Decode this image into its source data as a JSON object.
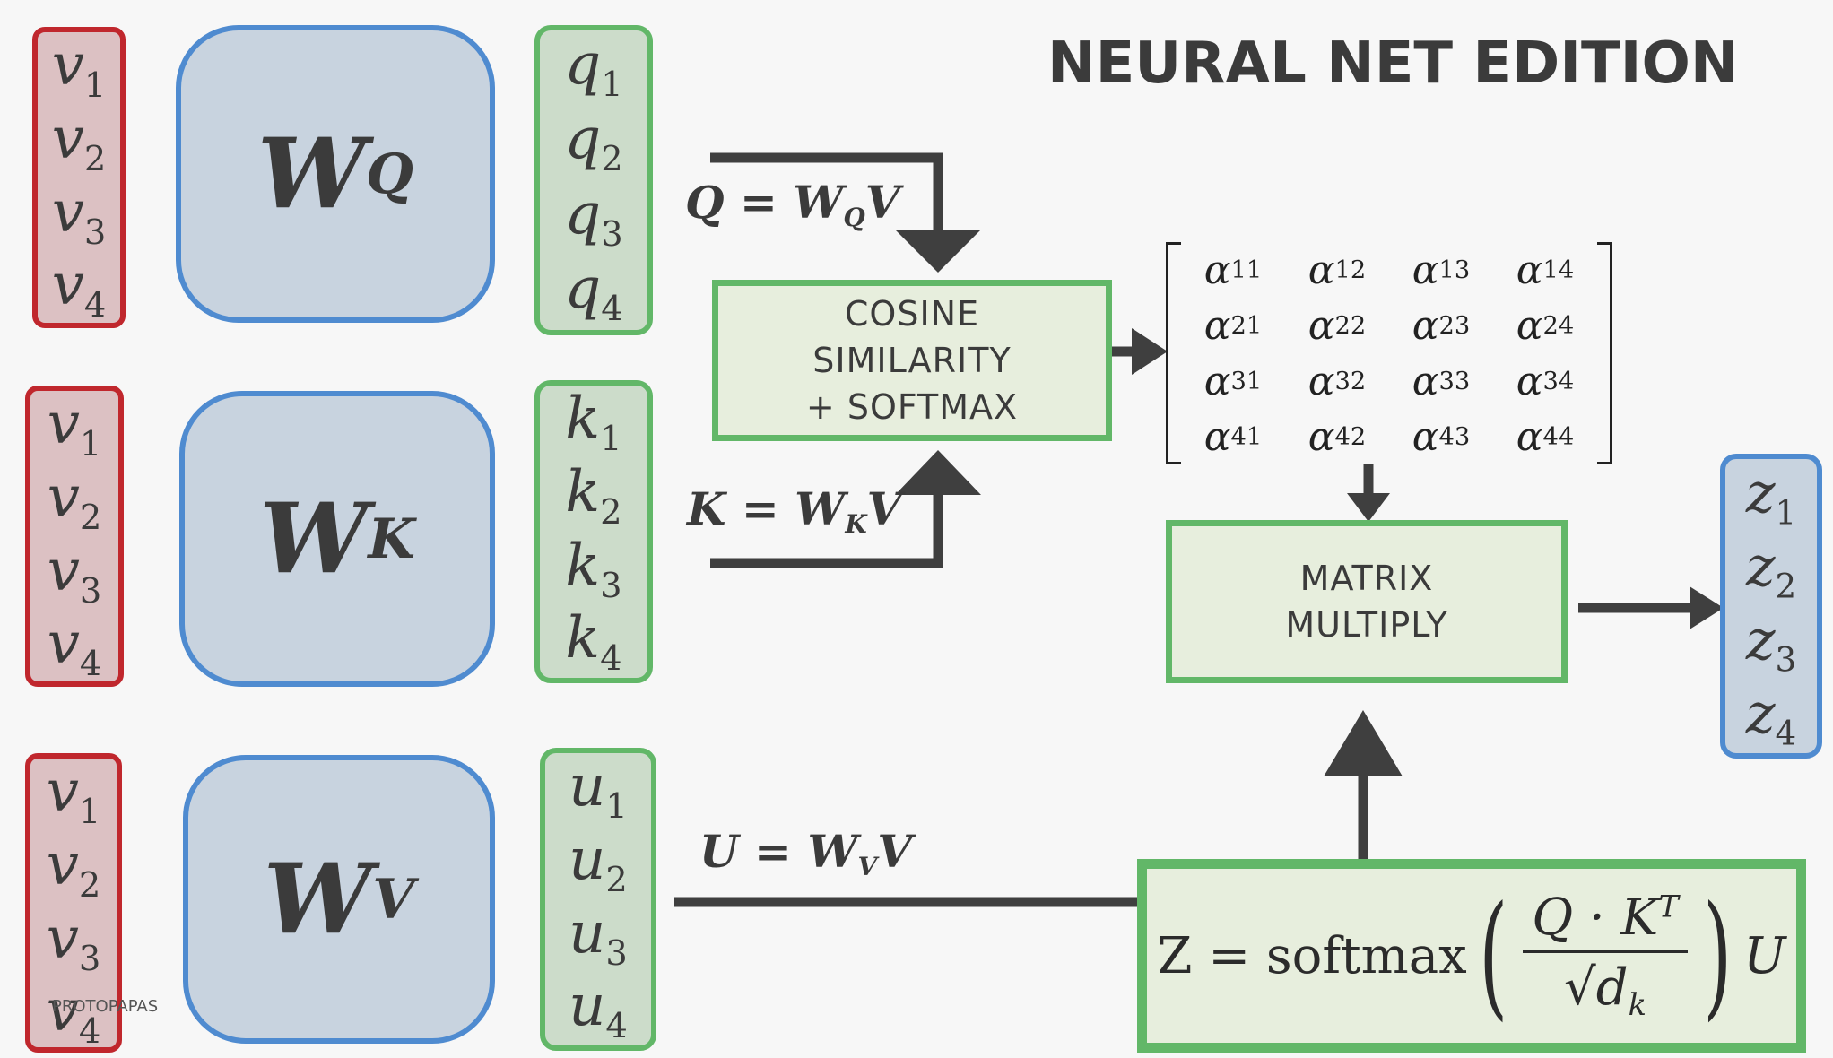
{
  "title": "NEURAL NET EDITION",
  "inputs": {
    "top": [
      "v1",
      "v2",
      "v3",
      "v4"
    ],
    "middle": [
      "v1",
      "v2",
      "v3",
      "v4"
    ],
    "bottom": [
      "v1",
      "v2",
      "v3",
      "v4"
    ]
  },
  "weights": {
    "q": {
      "main": "W",
      "sub": "Q"
    },
    "k": {
      "main": "W",
      "sub": "K"
    },
    "v": {
      "main": "W",
      "sub": "V"
    }
  },
  "queries": [
    "q1",
    "q2",
    "q3",
    "q4"
  ],
  "keys": [
    "k1",
    "k2",
    "k3",
    "k4"
  ],
  "values": [
    "u1",
    "u2",
    "u3",
    "u4"
  ],
  "equations": {
    "q": {
      "lhs": "Q = W",
      "sub": "Q",
      "rhs": "V"
    },
    "k": {
      "lhs": "K = W",
      "sub": "K",
      "rhs": "V"
    },
    "u": {
      "lhs": "U = W",
      "sub": "V",
      "rhs": "V"
    }
  },
  "cosine_box": [
    "COSINE",
    "SIMILARITY",
    "+ SOFTMAX"
  ],
  "attention_matrix": [
    [
      "α",
      "11"
    ],
    [
      "α",
      "12"
    ],
    [
      "α",
      "13"
    ],
    [
      "α",
      "14"
    ],
    [
      "α",
      "21"
    ],
    [
      "α",
      "22"
    ],
    [
      "α",
      "23"
    ],
    [
      "α",
      "24"
    ],
    [
      "α",
      "31"
    ],
    [
      "α",
      "32"
    ],
    [
      "α",
      "33"
    ],
    [
      "α",
      "34"
    ],
    [
      "α",
      "41"
    ],
    [
      "α",
      "42"
    ],
    [
      "α",
      "43"
    ],
    [
      "α",
      "44"
    ]
  ],
  "matmul_box": [
    "MATRIX",
    "MULTIPLY"
  ],
  "outputs": [
    "z1",
    "z2",
    "z3",
    "z4"
  ],
  "formula": {
    "lhs": "Z = softmax",
    "numerator": "Q · K",
    "numerator_sup": "T",
    "denominator": "√d",
    "denominator_sub": "k",
    "rhs": "U"
  },
  "footer": "PROTOPAPAS",
  "colors": {
    "red": "#c0272d",
    "green": "#62b768",
    "blue": "#4f8bd0",
    "arrow": "#3f3f3f"
  }
}
